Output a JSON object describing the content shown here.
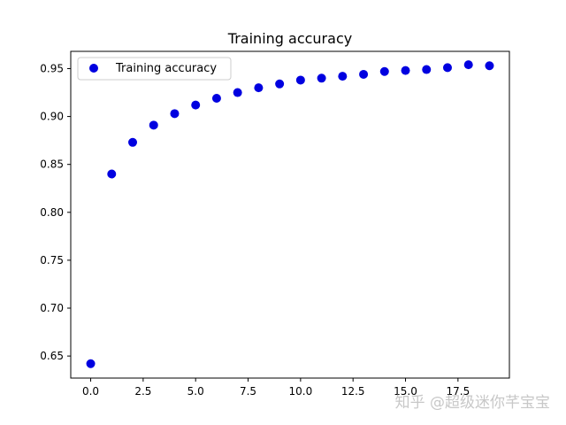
{
  "chart_data": {
    "type": "scatter",
    "title": "Training accuracy",
    "xlabel": "",
    "ylabel": "",
    "xlim": [
      -0.95,
      19.95
    ],
    "ylim": [
      0.627,
      0.968
    ],
    "x_ticks": [
      "0.0",
      "2.5",
      "5.0",
      "7.5",
      "10.0",
      "12.5",
      "15.0",
      "17.5"
    ],
    "y_ticks": [
      "0.65",
      "0.70",
      "0.75",
      "0.80",
      "0.85",
      "0.90",
      "0.95"
    ],
    "grid": false,
    "legend_position": "top-left",
    "series": [
      {
        "name": "Training accuracy",
        "color": "#0000e0",
        "marker": "circle",
        "x": [
          0,
          1,
          2,
          3,
          4,
          5,
          6,
          7,
          8,
          9,
          10,
          11,
          12,
          13,
          14,
          15,
          16,
          17,
          18,
          19
        ],
        "y": [
          0.642,
          0.84,
          0.873,
          0.891,
          0.903,
          0.912,
          0.919,
          0.925,
          0.93,
          0.934,
          0.938,
          0.94,
          0.942,
          0.944,
          0.947,
          0.948,
          0.949,
          0.951,
          0.954,
          0.953
        ]
      }
    ]
  },
  "watermark": "知乎 @超级迷你芊宝宝"
}
